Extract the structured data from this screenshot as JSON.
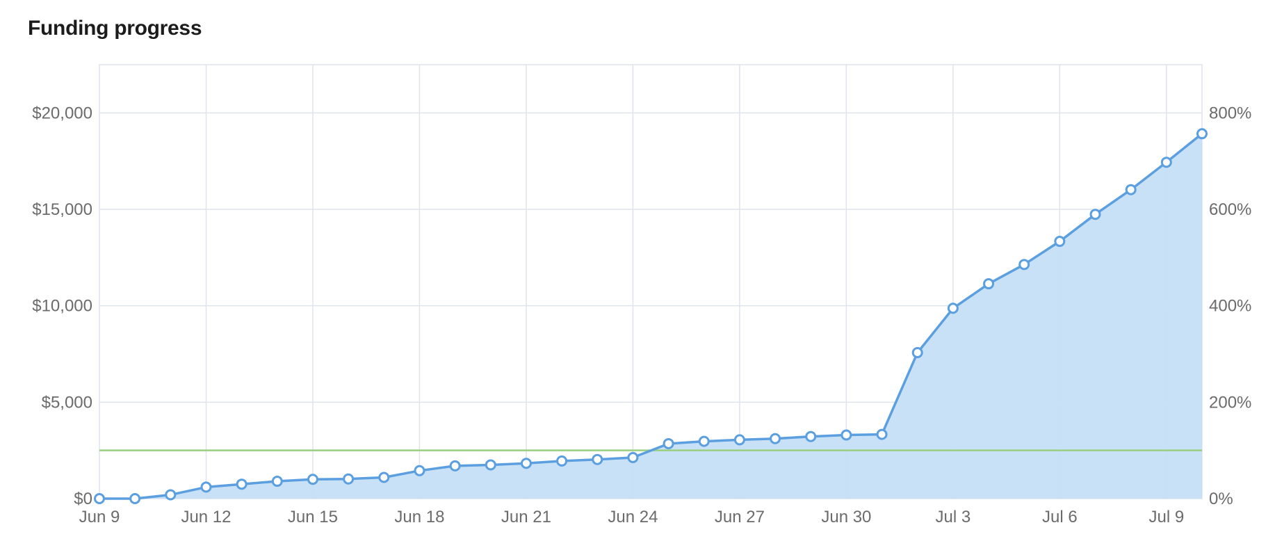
{
  "page_title": "Funding progress",
  "chart_data": {
    "type": "area",
    "title": "Funding progress",
    "xlabel": "",
    "ylabel": "",
    "x": [
      "Jun 9",
      "Jun 10",
      "Jun 11",
      "Jun 12",
      "Jun 13",
      "Jun 14",
      "Jun 15",
      "Jun 16",
      "Jun 17",
      "Jun 18",
      "Jun 19",
      "Jun 20",
      "Jun 21",
      "Jun 22",
      "Jun 23",
      "Jun 24",
      "Jun 25",
      "Jun 26",
      "Jun 27",
      "Jun 28",
      "Jun 29",
      "Jun 30",
      "Jul 1",
      "Jul 2",
      "Jul 3",
      "Jul 4",
      "Jul 5",
      "Jul 6",
      "Jul 7",
      "Jul 8",
      "Jul 9",
      "Jul 10"
    ],
    "x_tick_labels": [
      "Jun 9",
      "Jun 12",
      "Jun 15",
      "Jun 18",
      "Jun 21",
      "Jun 24",
      "Jun 27",
      "Jun 30",
      "Jul 3",
      "Jul 6",
      "Jul 9"
    ],
    "series": [
      {
        "values": [
          0,
          0,
          200,
          600,
          750,
          900,
          1000,
          1020,
          1100,
          1450,
          1700,
          1750,
          1830,
          1950,
          2030,
          2130,
          2850,
          2970,
          3050,
          3110,
          3220,
          3300,
          3330,
          7570,
          9870,
          11140,
          12140,
          13340,
          14740,
          16020,
          17440,
          18920
        ]
      }
    ],
    "goal_line": 2500,
    "ylim": [
      0,
      22500
    ],
    "y_ticks": [
      0,
      5000,
      10000,
      15000,
      20000
    ],
    "y_tick_labels": [
      "$0",
      "$5,000",
      "$10,000",
      "$15,000",
      "$20,000"
    ],
    "y2_ticks": [
      0,
      200,
      400,
      600,
      800
    ],
    "y2_tick_labels": [
      "0%",
      "200%",
      "400%",
      "600%",
      "800%"
    ],
    "grid": true,
    "colors": {
      "line": "#5b9fe0",
      "fill": "#c5dff7",
      "goal": "#98cf80",
      "grid": "#dfe3ec"
    }
  }
}
